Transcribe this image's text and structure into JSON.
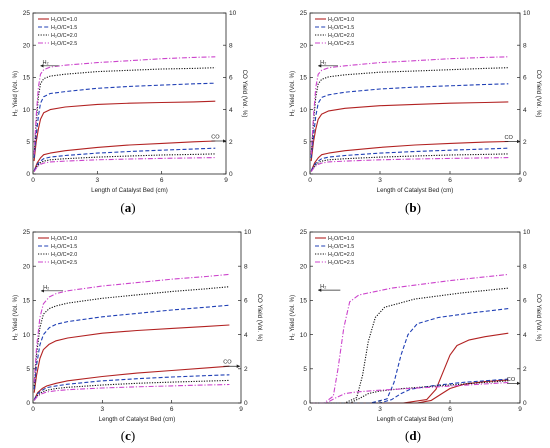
{
  "colors": {
    "s1": "#b22222",
    "s2": "#1f3fb5",
    "s3": "#111111",
    "s4": "#cc44cc",
    "axis": "#222222"
  },
  "line_styles": {
    "s1": "solid",
    "s2": "dash",
    "s3": "dot",
    "s4": "dashdot"
  },
  "chart_data": [
    {
      "type": "line",
      "panel_label": "a",
      "xlabel": "Length of Catalyst Bed (cm)",
      "ylabel": "H₂ Yield (Vol. %)",
      "y2label": "CO Yield (Vol. %)",
      "xlim": [
        0,
        9
      ],
      "ylim": [
        0,
        25
      ],
      "y2lim": [
        0,
        10
      ],
      "xticks": [
        0,
        3,
        6,
        9
      ],
      "yticks": [
        0,
        5,
        10,
        15,
        20,
        25
      ],
      "y2ticks": [
        0,
        2,
        4,
        6,
        8,
        10
      ],
      "legend": [
        "H₂O/C=1.0",
        "H₂O/C=1.5",
        "H₂O/C=2.0",
        "H₂O/C=2.5"
      ],
      "annotations": [
        {
          "text": "H₂"
        },
        {
          "text": "CO"
        }
      ],
      "series": [
        {
          "name": "H₂O/C=1.0",
          "axis": "H2",
          "x": [
            0.05,
            0.15,
            0.25,
            0.35,
            0.5,
            0.8,
            1.5,
            3,
            4.5,
            6,
            7.5,
            8.5
          ],
          "y": [
            2,
            5,
            7,
            8.5,
            9.5,
            10,
            10.4,
            10.8,
            11,
            11.1,
            11.2,
            11.3
          ]
        },
        {
          "name": "H₂O/C=1.5",
          "axis": "H2",
          "x": [
            0.05,
            0.15,
            0.25,
            0.35,
            0.5,
            0.8,
            1.5,
            3,
            4.5,
            6,
            7.5,
            8.5
          ],
          "y": [
            2.5,
            6,
            9,
            11,
            12,
            12.5,
            12.8,
            13.3,
            13.6,
            13.8,
            14,
            14.1
          ]
        },
        {
          "name": "H₂O/C=2.0",
          "axis": "H2",
          "x": [
            0.05,
            0.15,
            0.25,
            0.35,
            0.5,
            0.8,
            1.5,
            3,
            4.5,
            6,
            7.5,
            8.5
          ],
          "y": [
            3,
            8,
            12,
            14,
            14.8,
            15.2,
            15.5,
            15.9,
            16.1,
            16.3,
            16.4,
            16.5
          ]
        },
        {
          "name": "H₂O/C=2.5",
          "axis": "H2",
          "x": [
            0.05,
            0.15,
            0.25,
            0.35,
            0.5,
            0.8,
            1.5,
            3,
            4.5,
            6,
            7.5,
            8.5
          ],
          "y": [
            3,
            9,
            13.5,
            15.5,
            16.2,
            16.6,
            16.9,
            17.3,
            17.6,
            17.9,
            18.1,
            18.2
          ]
        },
        {
          "name": "H₂O/C=1.0",
          "axis": "CO",
          "x": [
            0.05,
            0.2,
            0.35,
            0.5,
            0.8,
            1.5,
            3,
            4.5,
            6,
            7.5,
            8.5
          ],
          "y": [
            0.2,
            0.7,
            1.0,
            1.2,
            1.3,
            1.45,
            1.65,
            1.8,
            1.9,
            2.0,
            2.05
          ]
        },
        {
          "name": "H₂O/C=1.5",
          "axis": "CO",
          "x": [
            0.05,
            0.2,
            0.35,
            0.5,
            0.8,
            1.5,
            3,
            4.5,
            6,
            7.5,
            8.5
          ],
          "y": [
            0.2,
            0.6,
            0.8,
            0.95,
            1.05,
            1.15,
            1.3,
            1.4,
            1.48,
            1.55,
            1.6
          ]
        },
        {
          "name": "H₂O/C=2.0",
          "axis": "CO",
          "x": [
            0.05,
            0.2,
            0.35,
            0.5,
            0.8,
            1.5,
            3,
            4.5,
            6,
            7.5,
            8.5
          ],
          "y": [
            0.15,
            0.5,
            0.7,
            0.8,
            0.88,
            0.95,
            1.05,
            1.12,
            1.18,
            1.22,
            1.25
          ]
        },
        {
          "name": "H₂O/C=2.5",
          "axis": "CO",
          "x": [
            0.05,
            0.2,
            0.35,
            0.5,
            0.8,
            1.5,
            3,
            4.5,
            6,
            7.5,
            8.5
          ],
          "y": [
            0.15,
            0.45,
            0.6,
            0.68,
            0.75,
            0.8,
            0.88,
            0.93,
            0.97,
            1.0,
            1.02
          ]
        }
      ]
    },
    {
      "type": "line",
      "panel_label": "b",
      "xlabel": "Length of Catalyst Bed (cm)",
      "ylabel": "H₂ Yield (Vol. %)",
      "y2label": "CO Yield (Vol. %)",
      "xlim": [
        0,
        9
      ],
      "ylim": [
        0,
        25
      ],
      "y2lim": [
        0,
        10
      ],
      "xticks": [
        0,
        3,
        6,
        9
      ],
      "yticks": [
        0,
        5,
        10,
        15,
        20,
        25
      ],
      "y2ticks": [
        0,
        2,
        4,
        6,
        8,
        10
      ],
      "legend": [
        "H₂O/C=1.0",
        "H₂O/C=1.5",
        "H₂O/C=2.0",
        "H₂O/C=2.5"
      ],
      "annotations": [
        {
          "text": "H₂"
        },
        {
          "text": "CO"
        }
      ],
      "series": [
        {
          "name": "H₂O/C=1.0",
          "axis": "H2",
          "x": [
            0.05,
            0.15,
            0.25,
            0.35,
            0.5,
            0.8,
            1.5,
            3,
            4.5,
            6,
            7.5,
            8.5
          ],
          "y": [
            2,
            5,
            7,
            8.5,
            9.3,
            9.8,
            10.2,
            10.6,
            10.8,
            11,
            11.1,
            11.2
          ]
        },
        {
          "name": "H₂O/C=1.5",
          "axis": "H2",
          "x": [
            0.05,
            0.15,
            0.25,
            0.35,
            0.5,
            0.8,
            1.5,
            3,
            4.5,
            6,
            7.5,
            8.5
          ],
          "y": [
            2.5,
            6,
            9,
            11,
            11.9,
            12.3,
            12.7,
            13.2,
            13.5,
            13.7,
            13.9,
            14
          ]
        },
        {
          "name": "H₂O/C=2.0",
          "axis": "H2",
          "x": [
            0.05,
            0.15,
            0.25,
            0.35,
            0.5,
            0.8,
            1.5,
            3,
            4.5,
            6,
            7.5,
            8.5
          ],
          "y": [
            3,
            8,
            12,
            14,
            14.7,
            15.1,
            15.4,
            15.8,
            16,
            16.2,
            16.4,
            16.5
          ]
        },
        {
          "name": "H₂O/C=2.5",
          "axis": "H2",
          "x": [
            0.05,
            0.15,
            0.25,
            0.35,
            0.5,
            0.8,
            1.5,
            3,
            4.5,
            6,
            7.5,
            8.5
          ],
          "y": [
            3,
            9,
            13.5,
            15.5,
            16.1,
            16.5,
            16.8,
            17.3,
            17.6,
            17.9,
            18.1,
            18.2
          ]
        },
        {
          "name": "H₂O/C=1.0",
          "axis": "CO",
          "x": [
            0.05,
            0.2,
            0.35,
            0.5,
            0.8,
            1.5,
            3,
            4.5,
            6,
            7.5,
            8.5
          ],
          "y": [
            0.2,
            0.7,
            1.0,
            1.2,
            1.3,
            1.45,
            1.65,
            1.8,
            1.9,
            1.98,
            2.02
          ]
        },
        {
          "name": "H₂O/C=1.5",
          "axis": "CO",
          "x": [
            0.05,
            0.2,
            0.35,
            0.5,
            0.8,
            1.5,
            3,
            4.5,
            6,
            7.5,
            8.5
          ],
          "y": [
            0.2,
            0.6,
            0.8,
            0.95,
            1.05,
            1.15,
            1.3,
            1.4,
            1.48,
            1.55,
            1.6
          ]
        },
        {
          "name": "H₂O/C=2.0",
          "axis": "CO",
          "x": [
            0.05,
            0.2,
            0.35,
            0.5,
            0.8,
            1.5,
            3,
            4.5,
            6,
            7.5,
            8.5
          ],
          "y": [
            0.15,
            0.5,
            0.7,
            0.8,
            0.88,
            0.95,
            1.05,
            1.12,
            1.18,
            1.22,
            1.25
          ]
        },
        {
          "name": "H₂O/C=2.5",
          "axis": "CO",
          "x": [
            0.05,
            0.2,
            0.35,
            0.5,
            0.8,
            1.5,
            3,
            4.5,
            6,
            7.5,
            8.5
          ],
          "y": [
            0.15,
            0.45,
            0.6,
            0.68,
            0.75,
            0.8,
            0.88,
            0.93,
            0.97,
            1.0,
            1.02
          ]
        }
      ]
    },
    {
      "type": "line",
      "panel_label": "c",
      "xlabel": "Length of Catalyst Bed (cm)",
      "ylabel": "H₂ Yield (Vol. %)",
      "y2label": "CO Yield (Vol. %)",
      "xlim": [
        0,
        9
      ],
      "ylim": [
        0,
        25
      ],
      "y2lim": [
        0,
        10
      ],
      "xticks": [
        0,
        3,
        6,
        9
      ],
      "yticks": [
        0,
        5,
        10,
        15,
        20,
        25
      ],
      "y2ticks": [
        0,
        2,
        4,
        6,
        8,
        10
      ],
      "legend": [
        "H₂O/C=1.0",
        "H₂O/C=1.5",
        "H₂O/C=2.0",
        "H₂O/C=2.5"
      ],
      "annotations": [
        {
          "text": "H₂"
        },
        {
          "text": "CO"
        }
      ],
      "series": [
        {
          "name": "H₂O/C=1.0",
          "axis": "H2",
          "x": [
            0.05,
            0.15,
            0.3,
            0.45,
            0.7,
            1,
            1.5,
            3,
            4.5,
            6,
            7.5,
            8.5
          ],
          "y": [
            1.5,
            4,
            6.5,
            7.8,
            8.6,
            9.1,
            9.5,
            10.2,
            10.6,
            10.9,
            11.2,
            11.4
          ]
        },
        {
          "name": "H₂O/C=1.5",
          "axis": "H2",
          "x": [
            0.05,
            0.15,
            0.3,
            0.45,
            0.7,
            1,
            1.5,
            3,
            4.5,
            6,
            7.5,
            8.5
          ],
          "y": [
            2,
            5.5,
            8.5,
            10,
            11,
            11.5,
            11.9,
            12.6,
            13.1,
            13.6,
            14,
            14.3
          ]
        },
        {
          "name": "H₂O/C=2.0",
          "axis": "H2",
          "x": [
            0.05,
            0.15,
            0.3,
            0.45,
            0.7,
            1,
            1.5,
            3,
            4.5,
            6,
            7.5,
            8.5
          ],
          "y": [
            2.5,
            7,
            11,
            13,
            13.8,
            14.2,
            14.6,
            15.3,
            15.8,
            16.3,
            16.7,
            17
          ]
        },
        {
          "name": "H₂O/C=2.5",
          "axis": "H2",
          "x": [
            0.05,
            0.15,
            0.3,
            0.45,
            0.7,
            1,
            1.5,
            3,
            4.5,
            6,
            7.5,
            8.5
          ],
          "y": [
            3,
            8,
            12.5,
            14.5,
            15.5,
            16,
            16.4,
            17.1,
            17.6,
            18.1,
            18.5,
            18.8
          ]
        },
        {
          "name": "H₂O/C=1.0",
          "axis": "CO",
          "x": [
            0.05,
            0.2,
            0.4,
            0.6,
            1,
            1.5,
            3,
            4.5,
            6,
            7.5,
            8.5
          ],
          "y": [
            0.2,
            0.6,
            0.85,
            1.0,
            1.15,
            1.3,
            1.55,
            1.75,
            1.9,
            2.05,
            2.15
          ]
        },
        {
          "name": "H₂O/C=1.5",
          "axis": "CO",
          "x": [
            0.05,
            0.2,
            0.4,
            0.6,
            1,
            1.5,
            3,
            4.5,
            6,
            7.5,
            8.5
          ],
          "y": [
            0.2,
            0.55,
            0.75,
            0.9,
            1.0,
            1.1,
            1.3,
            1.42,
            1.52,
            1.6,
            1.65
          ]
        },
        {
          "name": "H₂O/C=2.0",
          "axis": "CO",
          "x": [
            0.05,
            0.2,
            0.4,
            0.6,
            1,
            1.5,
            3,
            4.5,
            6,
            7.5,
            8.5
          ],
          "y": [
            0.15,
            0.45,
            0.65,
            0.75,
            0.85,
            0.92,
            1.05,
            1.15,
            1.22,
            1.28,
            1.32
          ]
        },
        {
          "name": "H₂O/C=2.5",
          "axis": "CO",
          "x": [
            0.05,
            0.2,
            0.4,
            0.6,
            1,
            1.5,
            3,
            4.5,
            6,
            7.5,
            8.5
          ],
          "y": [
            0.15,
            0.4,
            0.55,
            0.65,
            0.72,
            0.78,
            0.88,
            0.95,
            1.0,
            1.05,
            1.08
          ]
        }
      ]
    },
    {
      "type": "line",
      "panel_label": "d",
      "xlabel": "Length of Catalyst Bed (cm)",
      "ylabel": "H₂ Yield (Vol. %)",
      "y2label": "CO Yield (Vol. %)",
      "xlim": [
        0,
        9
      ],
      "ylim": [
        0,
        25
      ],
      "y2lim": [
        0,
        10
      ],
      "xticks": [
        0,
        3,
        6,
        9
      ],
      "yticks": [
        0,
        5,
        10,
        15,
        20,
        25
      ],
      "y2ticks": [
        0,
        2,
        4,
        6,
        8,
        10
      ],
      "legend": [
        "H₂O/C=1.0",
        "H₂O/C=1.5",
        "H₂O/C=2.0",
        "H₂O/C=2.5"
      ],
      "annotations": [
        {
          "text": "H₂"
        },
        {
          "text": "CO"
        }
      ],
      "series": [
        {
          "name": "H₂O/C=1.0",
          "axis": "H2",
          "x": [
            0,
            4,
            5,
            5.4,
            5.7,
            6,
            6.3,
            6.8,
            7.5,
            8.5
          ],
          "y": [
            0,
            0,
            0.5,
            2,
            4.5,
            7,
            8.4,
            9.2,
            9.7,
            10.2
          ]
        },
        {
          "name": "H₂O/C=1.5",
          "axis": "H2",
          "x": [
            0,
            2.6,
            3.3,
            3.6,
            3.9,
            4.2,
            4.6,
            5.5,
            7,
            8.5
          ],
          "y": [
            0,
            0,
            0.6,
            3,
            7,
            10,
            11.6,
            12.5,
            13.2,
            13.8
          ]
        },
        {
          "name": "H₂O/C=2.0",
          "axis": "H2",
          "x": [
            0,
            1.5,
            2,
            2.25,
            2.5,
            2.8,
            3.2,
            4.5,
            6.5,
            8.5
          ],
          "y": [
            0,
            0,
            0.8,
            4,
            9,
            12.5,
            14,
            15.2,
            16.1,
            16.8
          ]
        },
        {
          "name": "H₂O/C=2.5",
          "axis": "H2",
          "x": [
            0,
            0.6,
            1,
            1.2,
            1.45,
            1.7,
            2.1,
            3.5,
            6,
            8.5
          ],
          "y": [
            0,
            0,
            1,
            5,
            11,
            14.8,
            15.8,
            16.8,
            17.9,
            18.8
          ]
        },
        {
          "name": "H₂O/C=1.0",
          "axis": "CO",
          "x": [
            0,
            4.6,
            5.2,
            5.6,
            6,
            6.6,
            7.5,
            8.5
          ],
          "y": [
            0,
            0,
            0.15,
            0.5,
            0.85,
            1.1,
            1.25,
            1.35
          ]
        },
        {
          "name": "H₂O/C=1.5",
          "axis": "CO",
          "x": [
            0,
            3,
            3.5,
            3.9,
            4.3,
            5.2,
            6.5,
            8.5
          ],
          "y": [
            0,
            0,
            0.2,
            0.55,
            0.8,
            1.0,
            1.2,
            1.4
          ]
        },
        {
          "name": "H₂O/C=2.0",
          "axis": "CO",
          "x": [
            0,
            1.7,
            2.1,
            2.5,
            3,
            4,
            6,
            8.5
          ],
          "y": [
            0,
            0,
            0.25,
            0.55,
            0.7,
            0.85,
            1.05,
            1.3
          ]
        },
        {
          "name": "H₂O/C=2.5",
          "axis": "CO",
          "x": [
            0,
            0.7,
            1.1,
            1.5,
            2,
            3,
            5.5,
            8.5
          ],
          "y": [
            0,
            0,
            0.3,
            0.55,
            0.65,
            0.75,
            0.95,
            1.2
          ]
        }
      ]
    }
  ]
}
